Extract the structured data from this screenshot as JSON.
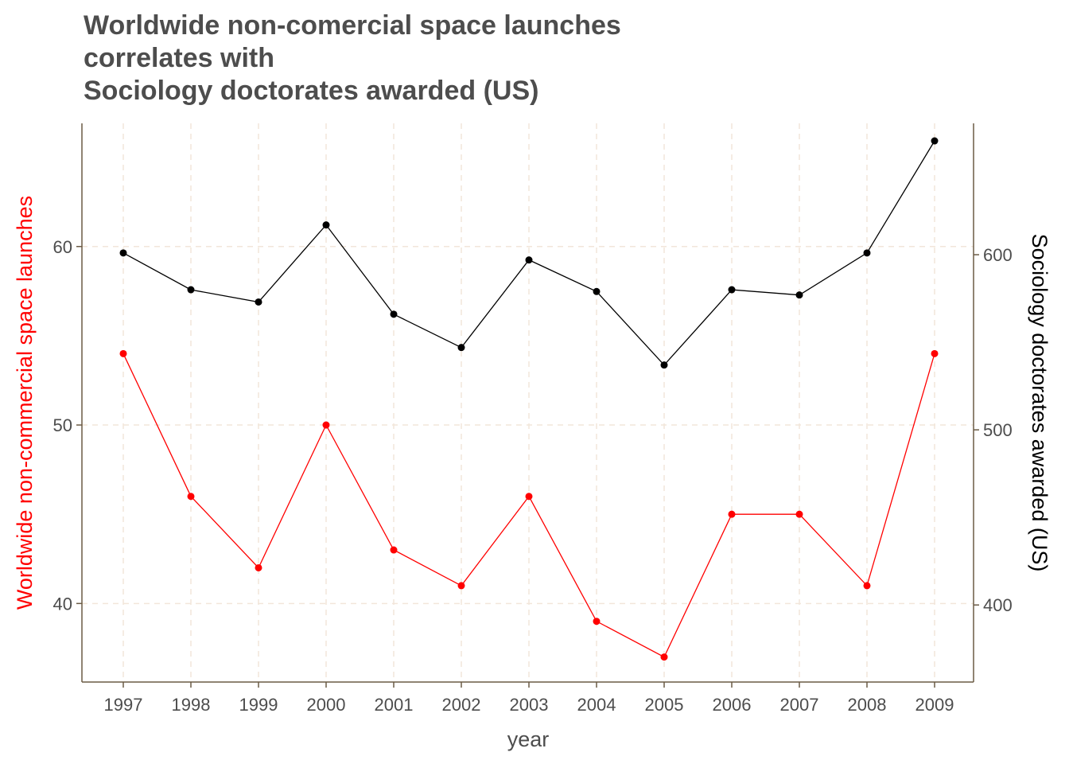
{
  "chart_data": {
    "type": "line",
    "title_lines": [
      "Worldwide non-comercial space launches",
      "correlates with",
      "Sociology doctorates awarded (US)"
    ],
    "xlabel": "year",
    "ylabel_left": "Worldwide non-commercial space launches",
    "ylabel_right": "Sociology doctorates awarded (US)",
    "x": [
      1997,
      1998,
      1999,
      2000,
      2001,
      2002,
      2003,
      2004,
      2005,
      2006,
      2007,
      2008,
      2009
    ],
    "series": [
      {
        "axis": "left",
        "color": "#ff0000",
        "values": [
          54,
          46,
          42,
          50,
          43,
          41,
          46,
          39,
          37,
          45,
          45,
          41,
          54
        ]
      },
      {
        "axis": "right",
        "color": "#000000",
        "values": [
          601,
          580,
          573,
          617,
          566,
          547,
          597,
          579,
          537,
          580,
          577,
          601,
          665
        ]
      }
    ],
    "y_left": {
      "ticks": [
        40,
        50,
        60
      ],
      "range": [
        35.6,
        66.9
      ]
    },
    "y_right": {
      "ticks": [
        400,
        500,
        600
      ],
      "range": [
        356,
        675
      ]
    },
    "grid": true,
    "grid_color": "#f2e6da",
    "axis_color": "#6b5b45",
    "left_axis_label_color": "#ff0000",
    "right_axis_label_color": "#000000"
  }
}
